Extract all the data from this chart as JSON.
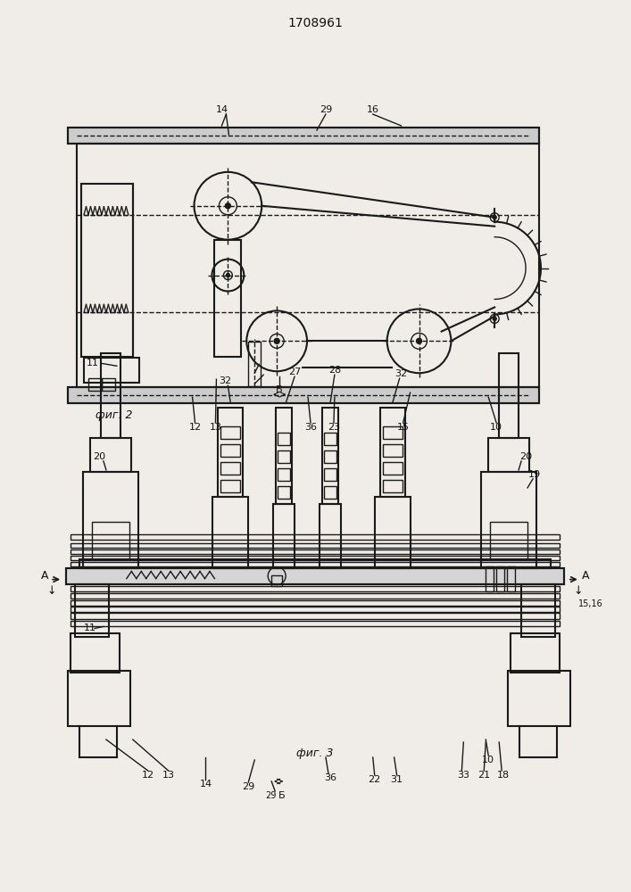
{
  "title": "1708961",
  "bg_color": "#f0ede8",
  "lc": "#1a1a1a",
  "fig2_label": "фиг. 2",
  "fig3_label": "фиг. 3"
}
